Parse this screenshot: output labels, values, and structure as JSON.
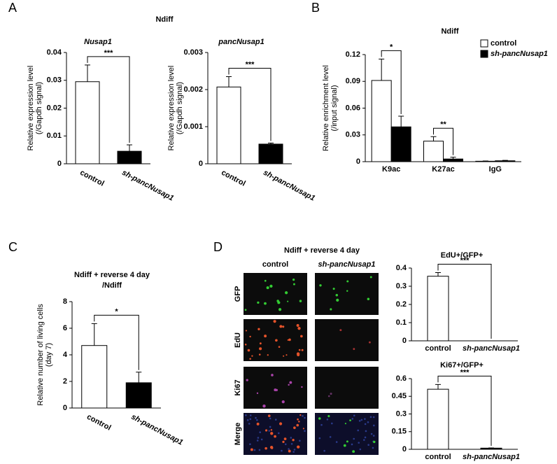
{
  "figure": {
    "panel_labels": [
      "A",
      "B",
      "C",
      "D"
    ],
    "panel_a_title": "Ndiff",
    "microscopy": {
      "title": "Ndiff + reverse 4 day",
      "columns": [
        "control",
        "sh-pancNusap1"
      ],
      "rows": [
        "GFP",
        "EdU",
        "Ki67",
        "Merge"
      ]
    }
  },
  "chart_data": [
    {
      "type": "bar",
      "title": "Nusap1",
      "title_italic": true,
      "ylabel": [
        "Relative expression level",
        "(/Gapdh signal)"
      ],
      "categories": [
        "control",
        "sh-pancNusap1"
      ],
      "italic_categories": [
        false,
        true
      ],
      "values": [
        0.0295,
        0.0045
      ],
      "errors": [
        0.006,
        0.0023
      ],
      "colors": [
        "#ffffff",
        "#000000"
      ],
      "ylim": [
        0,
        0.04
      ],
      "yticks": [
        0,
        0.01,
        0.02,
        0.03,
        0.04
      ],
      "rotate_xlabels": true,
      "significance": "***"
    },
    {
      "type": "bar",
      "title": "pancNusap1",
      "title_italic": true,
      "ylabel": [
        "Relative expression level",
        "(/Gapdh signal)"
      ],
      "categories": [
        "control",
        "sh-pancNusap1"
      ],
      "italic_categories": [
        false,
        true
      ],
      "values": [
        0.00207,
        0.00053
      ],
      "errors": [
        0.00028,
        3e-05
      ],
      "colors": [
        "#ffffff",
        "#000000"
      ],
      "ylim": [
        0,
        0.003
      ],
      "yticks": [
        0,
        0.001,
        0.002,
        0.003
      ],
      "rotate_xlabels": true,
      "significance": "***"
    },
    {
      "type": "grouped-bar",
      "title": "Ndiff",
      "title_italic": false,
      "ylabel": [
        "Relative enrichment level",
        "(/input signal)"
      ],
      "categories": [
        "K9ac",
        "K27ac",
        "IgG"
      ],
      "series": [
        {
          "name": "control",
          "color": "#ffffff",
          "values": [
            0.091,
            0.023,
            0.0005
          ],
          "errors": [
            0.024,
            0.005,
            0.0003
          ]
        },
        {
          "name": "sh-pancNusap1",
          "color": "#000000",
          "values": [
            0.039,
            0.003,
            0.001
          ],
          "errors": [
            0.012,
            0.002,
            0.0005
          ]
        }
      ],
      "legend": "upper-right",
      "ylim": [
        0,
        0.12
      ],
      "yticks": [
        0,
        0.03,
        0.06,
        0.09,
        0.12
      ],
      "rotate_xlabels": false,
      "significance": [
        "*",
        "**",
        null
      ]
    },
    {
      "type": "bar",
      "title": [
        "Ndiff + reverse 4 day",
        "/Ndiff"
      ],
      "title_italic": false,
      "ylabel": [
        "Relative number of living cells",
        "(day 7)"
      ],
      "categories": [
        "control",
        "sh-pancNusap1"
      ],
      "italic_categories": [
        false,
        true
      ],
      "values": [
        4.7,
        1.9
      ],
      "errors": [
        1.65,
        0.8
      ],
      "colors": [
        "#ffffff",
        "#000000"
      ],
      "ylim": [
        0,
        8
      ],
      "yticks": [
        0,
        2,
        4,
        6,
        8
      ],
      "rotate_xlabels": true,
      "significance": "*"
    },
    {
      "type": "bar",
      "title": "EdU+/GFP+",
      "title_italic": false,
      "categories": [
        "control",
        "sh-pancNusap1"
      ],
      "italic_categories": [
        false,
        true
      ],
      "values": [
        0.355,
        0
      ],
      "errors": [
        0.02,
        0
      ],
      "colors": [
        "#ffffff",
        "#000000"
      ],
      "ylim": [
        0,
        0.4
      ],
      "yticks": [
        0,
        0.1,
        0.2,
        0.3,
        0.4
      ],
      "rotate_xlabels": false,
      "significance": "***"
    },
    {
      "type": "bar",
      "title": "Ki67+/GFP+",
      "title_italic": false,
      "categories": [
        "control",
        "sh-pancNusap1"
      ],
      "italic_categories": [
        false,
        true
      ],
      "values": [
        0.51,
        0.01
      ],
      "errors": [
        0.04,
        0.002
      ],
      "colors": [
        "#ffffff",
        "#000000"
      ],
      "ylim": [
        0,
        0.6
      ],
      "yticks": [
        0,
        0.15,
        0.3,
        0.45,
        0.6
      ],
      "rotate_xlabels": false,
      "significance": "***"
    }
  ]
}
